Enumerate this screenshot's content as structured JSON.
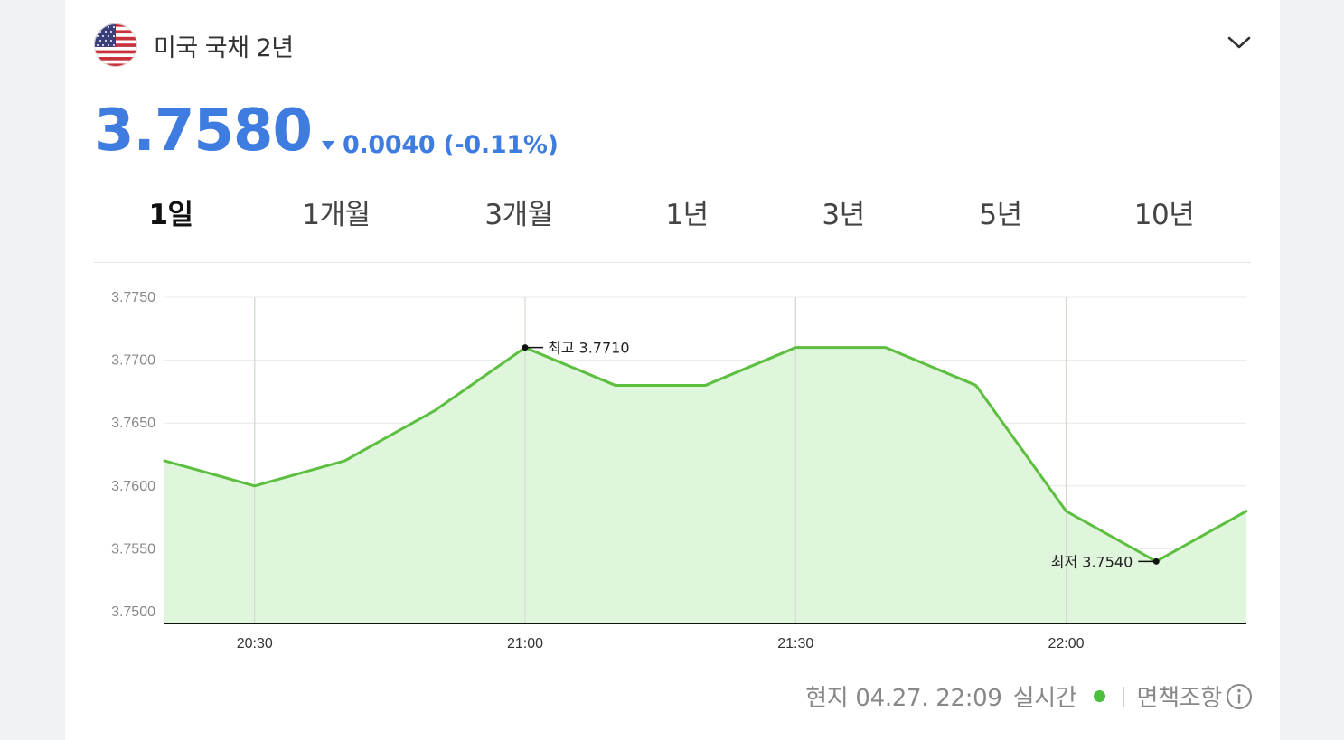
{
  "header": {
    "title": "미국 국채 2년",
    "flag_icon": "us-flag-icon",
    "dropdown_icon": "chevron-down-icon"
  },
  "quote": {
    "price": "3.7580",
    "change": "0.0040 (-0.11%)",
    "direction": "down",
    "color": "#3f7ce0"
  },
  "tabs": [
    {
      "label": "1일",
      "active": true
    },
    {
      "label": "1개월",
      "active": false
    },
    {
      "label": "3개월",
      "active": false
    },
    {
      "label": "1년",
      "active": false
    },
    {
      "label": "3년",
      "active": false
    },
    {
      "label": "5년",
      "active": false
    },
    {
      "label": "10년",
      "active": false
    }
  ],
  "chart_data": {
    "type": "area",
    "x": [
      "20:20",
      "20:30",
      "20:40",
      "20:50",
      "21:00",
      "21:10",
      "21:20",
      "21:30",
      "21:40",
      "21:50",
      "22:00",
      "22:10",
      "22:20"
    ],
    "values": [
      3.762,
      3.76,
      3.762,
      3.766,
      3.771,
      3.768,
      3.768,
      3.771,
      3.771,
      3.768,
      3.758,
      3.754,
      3.758
    ],
    "ylim": [
      3.75,
      3.775
    ],
    "yticks": [
      "3.7750",
      "3.7700",
      "3.7650",
      "3.7600",
      "3.7550",
      "3.7500"
    ],
    "xticks": [
      "20:30",
      "21:00",
      "21:30",
      "22:00"
    ],
    "high_label": "최고 3.7710",
    "low_label": "최저 3.7540",
    "line_color": "#5cbf3f",
    "fill_color": "#dff5dc",
    "grid": true
  },
  "footer": {
    "timestamp": "현지 04.27. 22:09",
    "live_label": "실시간",
    "live_color": "#4cbf3f",
    "disclaimer": "면책조항",
    "info_icon": "info-icon"
  }
}
